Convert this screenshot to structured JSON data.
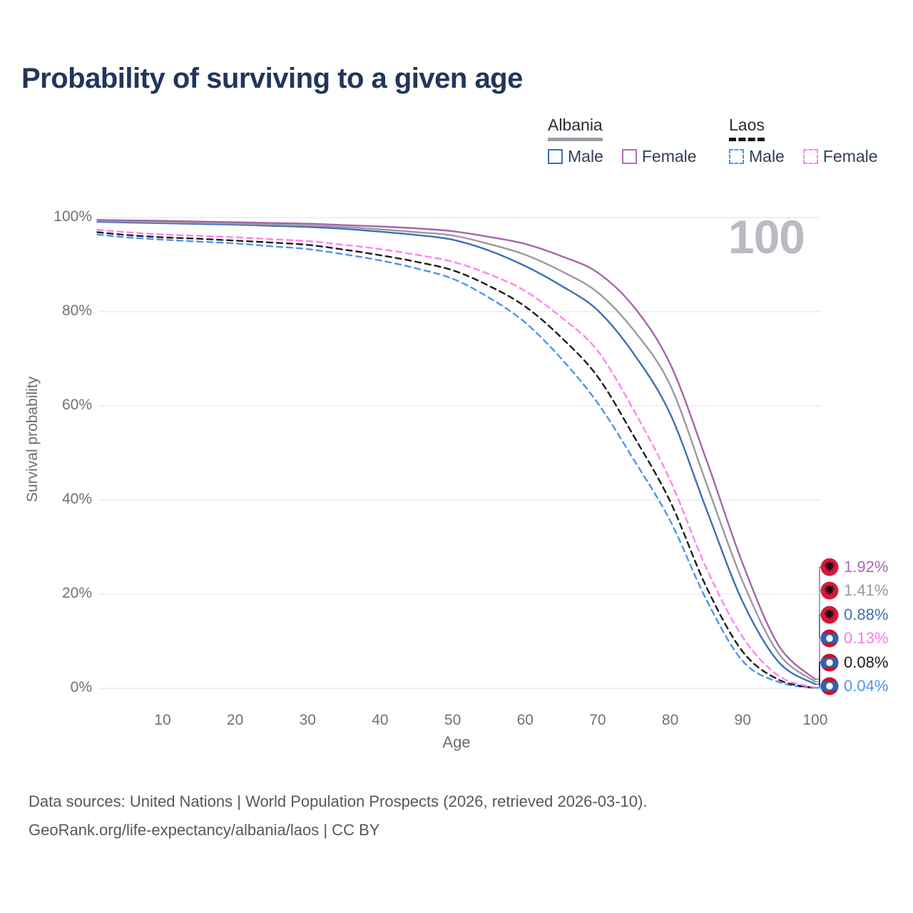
{
  "title": "Probability of surviving to a given age",
  "watermark": "100",
  "legend": {
    "groups": [
      {
        "name": "Albania",
        "line_style": "solid",
        "items": [
          {
            "label": "Male",
            "color": "#3d6fb5"
          },
          {
            "label": "Female",
            "color": "#b36fb3"
          }
        ]
      },
      {
        "name": "Laos",
        "line_style": "dashed",
        "items": [
          {
            "label": "Male",
            "color": "#4d94f0"
          },
          {
            "label": "Female",
            "color": "#ff85e8"
          }
        ]
      }
    ]
  },
  "chart_data": {
    "type": "line",
    "title": "Probability of surviving to a given age",
    "xlabel": "Age",
    "ylabel": "Survival probability",
    "xlim": [
      0,
      100
    ],
    "ylim": [
      0,
      100
    ],
    "grid": "horizontal",
    "xticks": [
      10,
      20,
      30,
      40,
      50,
      60,
      70,
      80,
      90,
      100
    ],
    "yticks": [
      {
        "value": 100,
        "label": "100%"
      },
      {
        "value": 80,
        "label": "80%"
      },
      {
        "value": 60,
        "label": "60%"
      },
      {
        "value": 40,
        "label": "40%"
      },
      {
        "value": 20,
        "label": "20%"
      },
      {
        "value": 0,
        "label": "0%"
      }
    ],
    "series": [
      {
        "name": "Laos Male",
        "country": "laos",
        "sex": "male",
        "color": "#4d94f0",
        "dash": true,
        "points": [
          [
            1,
            96.4
          ],
          [
            5,
            95.8
          ],
          [
            10,
            95.3
          ],
          [
            15,
            94.9
          ],
          [
            20,
            94.5
          ],
          [
            25,
            93.9
          ],
          [
            30,
            93.3
          ],
          [
            35,
            92.2
          ],
          [
            40,
            90.9
          ],
          [
            45,
            89.2
          ],
          [
            50,
            87.0
          ],
          [
            55,
            83.0
          ],
          [
            60,
            77.7
          ],
          [
            65,
            70.0
          ],
          [
            70,
            60.6
          ],
          [
            75,
            48.5
          ],
          [
            80,
            35.6
          ],
          [
            85,
            18.8
          ],
          [
            90,
            5.8
          ],
          [
            95,
            1.3
          ],
          [
            100,
            0.04
          ]
        ]
      },
      {
        "name": "Laos",
        "country": "laos",
        "sex": "both",
        "color": "#1c1c1e",
        "dash": true,
        "points": [
          [
            1,
            96.9
          ],
          [
            5,
            96.3
          ],
          [
            10,
            95.8
          ],
          [
            15,
            95.5
          ],
          [
            20,
            95.1
          ],
          [
            25,
            94.7
          ],
          [
            30,
            94.2
          ],
          [
            35,
            93.2
          ],
          [
            40,
            92.0
          ],
          [
            45,
            90.6
          ],
          [
            50,
            88.8
          ],
          [
            55,
            85.5
          ],
          [
            60,
            81.1
          ],
          [
            65,
            74.5
          ],
          [
            70,
            66.2
          ],
          [
            75,
            53.5
          ],
          [
            80,
            39.7
          ],
          [
            85,
            21.5
          ],
          [
            90,
            7.8
          ],
          [
            95,
            1.8
          ],
          [
            100,
            0.08
          ]
        ]
      },
      {
        "name": "Laos Female",
        "country": "laos",
        "sex": "female",
        "color": "#ff85e8",
        "dash": true,
        "points": [
          [
            1,
            97.4
          ],
          [
            5,
            96.9
          ],
          [
            10,
            96.4
          ],
          [
            15,
            96.1
          ],
          [
            20,
            95.8
          ],
          [
            25,
            95.4
          ],
          [
            30,
            95.0
          ],
          [
            35,
            94.2
          ],
          [
            40,
            93.3
          ],
          [
            45,
            92.1
          ],
          [
            50,
            90.6
          ],
          [
            55,
            88.0
          ],
          [
            60,
            84.4
          ],
          [
            65,
            78.8
          ],
          [
            70,
            71.7
          ],
          [
            75,
            59.0
          ],
          [
            80,
            44.2
          ],
          [
            85,
            25.5
          ],
          [
            90,
            10.9
          ],
          [
            95,
            2.6
          ],
          [
            100,
            0.13
          ]
        ]
      },
      {
        "name": "Albania Male",
        "country": "albania",
        "sex": "male",
        "color": "#3d6fb5",
        "dash": false,
        "points": [
          [
            1,
            99.1
          ],
          [
            5,
            98.95
          ],
          [
            10,
            98.8
          ],
          [
            15,
            98.65
          ],
          [
            20,
            98.5
          ],
          [
            25,
            98.25
          ],
          [
            30,
            98.0
          ],
          [
            35,
            97.6
          ],
          [
            40,
            97.0
          ],
          [
            45,
            96.3
          ],
          [
            50,
            95.3
          ],
          [
            55,
            93.0
          ],
          [
            60,
            89.7
          ],
          [
            65,
            85.5
          ],
          [
            70,
            80.3
          ],
          [
            75,
            71.0
          ],
          [
            80,
            58.3
          ],
          [
            85,
            38.0
          ],
          [
            90,
            18.4
          ],
          [
            95,
            5.5
          ],
          [
            100,
            0.88
          ]
        ]
      },
      {
        "name": "Albania",
        "country": "albania",
        "sex": "both",
        "color": "#9a9aa0",
        "dash": false,
        "points": [
          [
            1,
            99.3
          ],
          [
            5,
            99.15
          ],
          [
            10,
            99.0
          ],
          [
            15,
            98.85
          ],
          [
            20,
            98.7
          ],
          [
            25,
            98.5
          ],
          [
            30,
            98.3
          ],
          [
            35,
            98.0
          ],
          [
            40,
            97.5
          ],
          [
            45,
            96.9
          ],
          [
            50,
            96.2
          ],
          [
            55,
            94.4
          ],
          [
            60,
            92.1
          ],
          [
            65,
            88.6
          ],
          [
            70,
            84.1
          ],
          [
            75,
            76.0
          ],
          [
            80,
            64.4
          ],
          [
            85,
            43.5
          ],
          [
            90,
            22.7
          ],
          [
            95,
            7.3
          ],
          [
            100,
            1.41
          ]
        ]
      },
      {
        "name": "Albania Female",
        "country": "albania",
        "sex": "female",
        "color": "#a565a9",
        "dash": false,
        "points": [
          [
            1,
            99.5
          ],
          [
            5,
            99.4
          ],
          [
            10,
            99.3
          ],
          [
            15,
            99.15
          ],
          [
            20,
            99.0
          ],
          [
            25,
            98.85
          ],
          [
            30,
            98.7
          ],
          [
            35,
            98.4
          ],
          [
            40,
            98.1
          ],
          [
            45,
            97.7
          ],
          [
            50,
            97.1
          ],
          [
            55,
            95.9
          ],
          [
            60,
            94.4
          ],
          [
            65,
            91.8
          ],
          [
            70,
            88.3
          ],
          [
            75,
            81.0
          ],
          [
            80,
            68.9
          ],
          [
            85,
            48.5
          ],
          [
            90,
            26.5
          ],
          [
            95,
            9.0
          ],
          [
            100,
            1.92
          ]
        ]
      }
    ],
    "end_labels": [
      {
        "series": "Albania Female",
        "label": "1.92%",
        "value": 1.92,
        "color": "#a56bae",
        "country": "albania"
      },
      {
        "series": "Albania",
        "label": "1.41%",
        "value": 1.41,
        "color": "#9a9a9e",
        "country": "albania"
      },
      {
        "series": "Albania Male",
        "label": "0.88%",
        "value": 0.88,
        "color": "#3d6fb5",
        "country": "albania"
      },
      {
        "series": "Laos Female",
        "label": "0.13%",
        "value": 0.13,
        "color": "#ff7ae0",
        "country": "laos"
      },
      {
        "series": "Laos",
        "label": "0.08%",
        "value": 0.08,
        "color": "#1c1c1e",
        "country": "laos"
      },
      {
        "series": "Laos Male",
        "label": "0.04%",
        "value": 0.04,
        "color": "#4d94f0",
        "country": "laos"
      }
    ]
  },
  "footer": {
    "line1": "Data sources: United Nations | World Population Prospects (2026, retrieved 2026-03-10).",
    "line2": "GeoRank.org/life-expectancy/albania/laos | CC BY"
  },
  "colors": {
    "title": "#21365b",
    "axis_text": "#6e7277",
    "gridline": "#ebebee",
    "watermark": "#b9bac2",
    "albania_flag_red": "#d51a3c",
    "laos_flag_red": "#ce1126",
    "laos_flag_blue": "#2f62b2"
  }
}
